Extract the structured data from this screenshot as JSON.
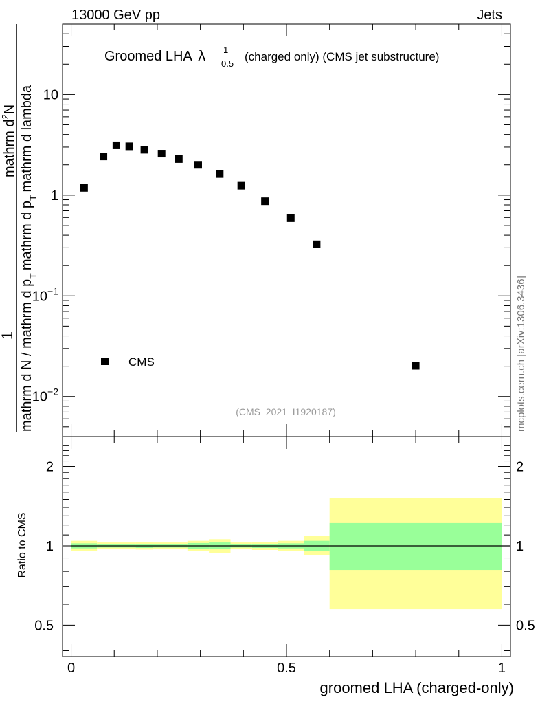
{
  "header": {
    "left": "13000 GeV pp",
    "right": "Jets"
  },
  "plot_title": {
    "main": "Groomed LHA",
    "symbol": "λ",
    "superscript": "1",
    "subscript": "0.5",
    "rest": "(charged only) (CMS jet substructure)"
  },
  "side_label": "mcplots.cern.ch [arXiv:1306.3436]",
  "analysis_tag": "(CMS_2021_I1920187)",
  "legend": {
    "label": "CMS",
    "position": "bottom-left"
  },
  "y_axis_label": {
    "numerator": "mathrm d^2N",
    "denominator_main": "mathrm d N / mathrm d p_T mathrm d p_T mathrm d lambda",
    "one": "1",
    "num_text": "mathrm d",
    "num_sup": "2",
    "num_tail": "N",
    "den_text_a": "mathrm d N / mathrm d p",
    "den_sub_a": "T",
    "den_text_b": "mathrm d p",
    "den_sub_b": "T",
    "den_text_c": "mathrm d lambda"
  },
  "ratio_ylabel": "Ratio to CMS",
  "xlabel": "groomed LHA (charged-only)",
  "chart_data": [
    {
      "type": "scatter",
      "panel": "main",
      "title": "Groomed LHA λ^1_0.5 (charged only) (CMS jet substructure)",
      "yscale": "log",
      "ylim": [
        0.004,
        50
      ],
      "xlim": [
        -0.02,
        1.02
      ],
      "ytick_labels": [
        "10^-2",
        "10^-1",
        "1",
        "10"
      ],
      "ytick_values": [
        0.01,
        0.1,
        1,
        10
      ],
      "series": [
        {
          "name": "CMS",
          "x": [
            0.03,
            0.075,
            0.105,
            0.135,
            0.17,
            0.21,
            0.25,
            0.295,
            0.345,
            0.395,
            0.45,
            0.51,
            0.57,
            0.8
          ],
          "values": [
            1.18,
            2.42,
            3.12,
            3.05,
            2.82,
            2.58,
            2.28,
            2.0,
            1.62,
            1.24,
            0.87,
            0.59,
            0.325,
            0.0202
          ]
        }
      ]
    },
    {
      "type": "area",
      "panel": "ratio",
      "ylabel": "Ratio to CMS",
      "xlabel": "groomed LHA (charged-only)",
      "yscale": "log",
      "ylim": [
        0.38,
        2.6
      ],
      "xlim": [
        -0.02,
        1.02
      ],
      "xtick_labels": [
        "0",
        "0.5",
        "1"
      ],
      "xtick_values": [
        0,
        0.5,
        1
      ],
      "ytick_labels": [
        "0.5",
        "1",
        "2"
      ],
      "ytick_values": [
        0.5,
        1,
        2
      ],
      "reference_line": 1,
      "bins": [
        {
          "x0": 0.0,
          "x1": 0.06,
          "inner": [
            0.978,
            1.022
          ],
          "outer": [
            0.955,
            1.045
          ]
        },
        {
          "x0": 0.06,
          "x1": 0.15,
          "inner": [
            0.985,
            1.015
          ],
          "outer": [
            0.97,
            1.03
          ]
        },
        {
          "x0": 0.15,
          "x1": 0.19,
          "inner": [
            0.982,
            1.018
          ],
          "outer": [
            0.968,
            1.035
          ]
        },
        {
          "x0": 0.19,
          "x1": 0.27,
          "inner": [
            0.985,
            1.015
          ],
          "outer": [
            0.97,
            1.03
          ]
        },
        {
          "x0": 0.27,
          "x1": 0.32,
          "inner": [
            0.975,
            1.025
          ],
          "outer": [
            0.955,
            1.045
          ]
        },
        {
          "x0": 0.32,
          "x1": 0.37,
          "inner": [
            0.97,
            1.03
          ],
          "outer": [
            0.94,
            1.06
          ]
        },
        {
          "x0": 0.37,
          "x1": 0.42,
          "inner": [
            0.985,
            1.015
          ],
          "outer": [
            0.97,
            1.03
          ]
        },
        {
          "x0": 0.42,
          "x1": 0.48,
          "inner": [
            0.982,
            1.018
          ],
          "outer": [
            0.965,
            1.035
          ]
        },
        {
          "x0": 0.48,
          "x1": 0.54,
          "inner": [
            0.978,
            1.022
          ],
          "outer": [
            0.955,
            1.045
          ]
        },
        {
          "x0": 0.54,
          "x1": 0.6,
          "inner": [
            0.955,
            1.045
          ],
          "outer": [
            0.92,
            1.09
          ]
        },
        {
          "x0": 0.6,
          "x1": 1.0,
          "inner": [
            0.81,
            1.22
          ],
          "outer": [
            0.575,
            1.52
          ]
        }
      ],
      "colors": {
        "inner": "#99ff99",
        "outer": "#ffff99"
      }
    }
  ]
}
